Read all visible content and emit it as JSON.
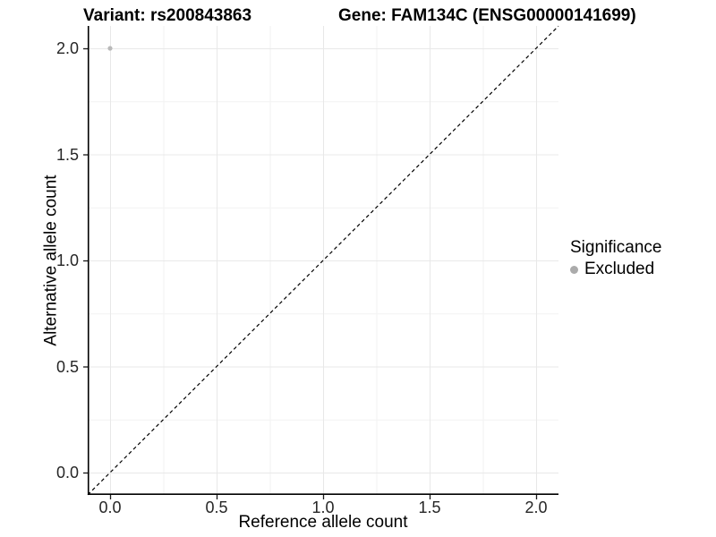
{
  "chart_data": {
    "type": "scatter",
    "title_left": "Variant: rs200843863",
    "title_right": "Gene: FAM134C (ENSG00000141699)",
    "xlabel": "Reference allele count",
    "ylabel": "Alternative allele count",
    "xlim": [
      -0.105,
      2.105
    ],
    "ylim": [
      -0.105,
      2.105
    ],
    "xticks": {
      "values": [
        0.0,
        0.5,
        1.0,
        1.5,
        2.0
      ],
      "labels": [
        "0.0",
        "0.5",
        "1.0",
        "1.5",
        "2.0"
      ]
    },
    "yticks": {
      "values": [
        0.0,
        0.5,
        1.0,
        1.5,
        2.0
      ],
      "labels": [
        "0.0",
        "0.5",
        "1.0",
        "1.5",
        "2.0"
      ]
    },
    "minor_ticks": [
      0.25,
      0.75,
      1.25,
      1.75
    ],
    "grid": "major+minor",
    "reference_line": {
      "kind": "identity y=x",
      "style": "dashed",
      "color": "#000000"
    },
    "series": [
      {
        "name": "Excluded",
        "color": "#b9b9b9",
        "marker": "circle",
        "points": [
          {
            "x": 0.0,
            "y": 2.0
          }
        ]
      }
    ],
    "legend": {
      "title": "Significance",
      "position": "right",
      "entries": [
        {
          "label": "Excluded",
          "color": "#ababab",
          "marker": "circle"
        }
      ]
    },
    "colors": {
      "grid_major": "#e8e8e8",
      "grid_minor": "#f2f2f2",
      "axis_line": "#000000",
      "tick_mark": "#1a1a1a",
      "tick_text": "#262626",
      "background": "#ffffff"
    }
  }
}
